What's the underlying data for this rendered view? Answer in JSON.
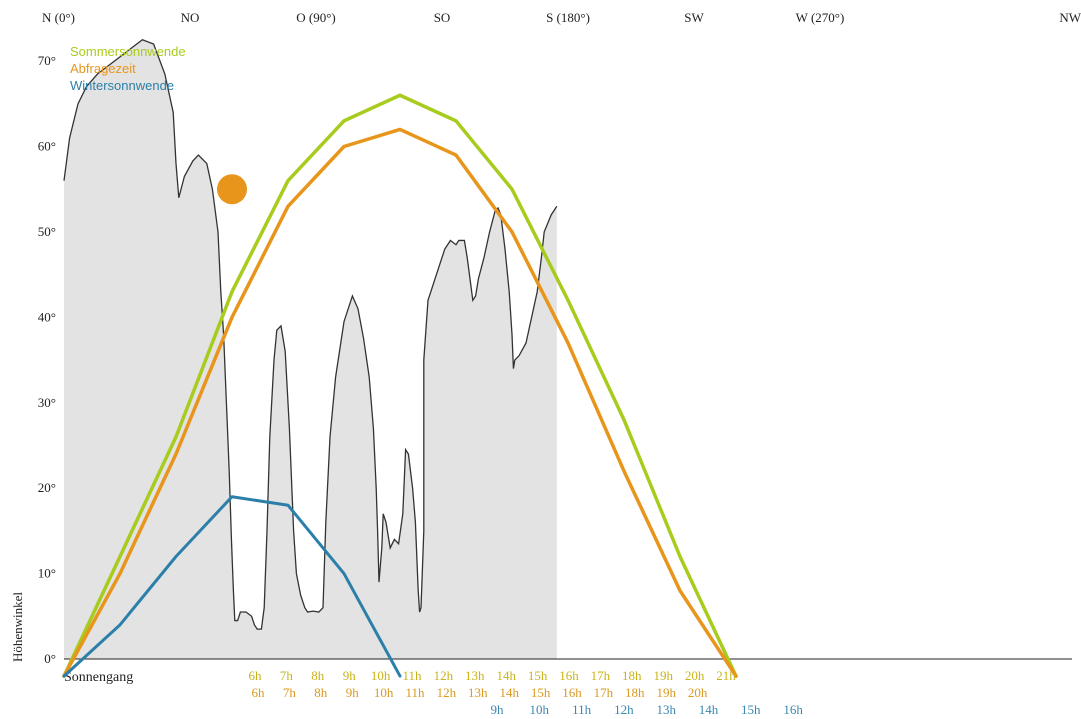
{
  "chart_data": {
    "type": "line",
    "ylabel": "Höhenwinkel",
    "xlabel": "Sonnengang",
    "xlim": [
      0,
      360
    ],
    "ylim": [
      0,
      72
    ],
    "direction_labels": [
      {
        "az": 0,
        "label": "N (0°)"
      },
      {
        "az": 45,
        "label": "NO"
      },
      {
        "az": 90,
        "label": "O (90°)"
      },
      {
        "az": 135,
        "label": "SO"
      },
      {
        "az": 180,
        "label": "S (180°)"
      },
      {
        "az": 225,
        "label": "SW"
      },
      {
        "az": 270,
        "label": "W (270°)"
      },
      {
        "az": 315,
        "label": "NW"
      }
    ],
    "y_ticks": [
      {
        "value": 0,
        "label": "0°"
      },
      {
        "value": 10,
        "label": "10°"
      },
      {
        "value": 20,
        "label": "20°"
      },
      {
        "value": 30,
        "label": "30°"
      },
      {
        "value": 40,
        "label": "40°"
      },
      {
        "value": 50,
        "label": "50°"
      },
      {
        "value": 60,
        "label": "60°"
      },
      {
        "value": 70,
        "label": "70°"
      }
    ],
    "legend": [
      {
        "label": "Sommersonnwende",
        "color": "#a8cc1e"
      },
      {
        "label": "Abfragezeit",
        "color": "#e8951c"
      },
      {
        "label": "Wintersonnwende",
        "color": "#2b7fa8"
      }
    ],
    "horizon": {
      "color": "#333333",
      "fill": "#e3e3e3",
      "points": [
        [
          0,
          56
        ],
        [
          2,
          61
        ],
        [
          5,
          65
        ],
        [
          8,
          67
        ],
        [
          12,
          68.5
        ],
        [
          18,
          70
        ],
        [
          24,
          71.5
        ],
        [
          28,
          72.5
        ],
        [
          32,
          72
        ],
        [
          36,
          68.5
        ],
        [
          39,
          64
        ],
        [
          40,
          58
        ],
        [
          41,
          54
        ],
        [
          43,
          56.5
        ],
        [
          46,
          58.3
        ],
        [
          48,
          59
        ],
        [
          51,
          58
        ],
        [
          53,
          55
        ],
        [
          55,
          50
        ],
        [
          56,
          43
        ],
        [
          57,
          38
        ],
        [
          58,
          30
        ],
        [
          59,
          22
        ],
        [
          59.8,
          14
        ],
        [
          60.5,
          8
        ],
        [
          61,
          4.5
        ],
        [
          62,
          4.5
        ],
        [
          63,
          5.5
        ],
        [
          65,
          5.5
        ],
        [
          67,
          5
        ],
        [
          68,
          4
        ],
        [
          69,
          3.5
        ],
        [
          70.5,
          3.5
        ],
        [
          71.5,
          6
        ],
        [
          72.5,
          15
        ],
        [
          73.5,
          26
        ],
        [
          75,
          35
        ],
        [
          76,
          38.5
        ],
        [
          77.5,
          39
        ],
        [
          79,
          36
        ],
        [
          80.5,
          27
        ],
        [
          82,
          15
        ],
        [
          83,
          10
        ],
        [
          84.5,
          7.5
        ],
        [
          86,
          6
        ],
        [
          87,
          5.5
        ],
        [
          89,
          5.6
        ],
        [
          91,
          5.5
        ],
        [
          92.5,
          6
        ],
        [
          93.5,
          16
        ],
        [
          95,
          26
        ],
        [
          97,
          33
        ],
        [
          100,
          39.5
        ],
        [
          103,
          42.5
        ],
        [
          105,
          41
        ],
        [
          107,
          37.5
        ],
        [
          109,
          33
        ],
        [
          110.5,
          27
        ],
        [
          111.5,
          20
        ],
        [
          112,
          15
        ],
        [
          112.5,
          9
        ],
        [
          113.5,
          13
        ],
        [
          114,
          17
        ],
        [
          115,
          16
        ],
        [
          116.5,
          13
        ],
        [
          118,
          14
        ],
        [
          119.5,
          13.5
        ],
        [
          121,
          17
        ],
        [
          122,
          24.5
        ],
        [
          123,
          24
        ],
        [
          124.5,
          20
        ],
        [
          125.5,
          16
        ],
        [
          126.5,
          8
        ],
        [
          127,
          5.5
        ],
        [
          127.5,
          6
        ],
        [
          128.5,
          15
        ],
        [
          128.5,
          35
        ],
        [
          130,
          42
        ],
        [
          132,
          44
        ],
        [
          134,
          46
        ],
        [
          136,
          48
        ],
        [
          138,
          49
        ],
        [
          140,
          48.5
        ],
        [
          141,
          49
        ],
        [
          143,
          49
        ],
        [
          144,
          47
        ],
        [
          145,
          44.5
        ],
        [
          146,
          42
        ],
        [
          147,
          42.5
        ],
        [
          148,
          44.5
        ],
        [
          150,
          47
        ],
        [
          152,
          50
        ],
        [
          154,
          52.5
        ],
        [
          155,
          52.8
        ],
        [
          156,
          52
        ],
        [
          157.5,
          48
        ],
        [
          159,
          43
        ],
        [
          160,
          38
        ],
        [
          160.5,
          34
        ],
        [
          161,
          35
        ],
        [
          162.5,
          35.5
        ],
        [
          165,
          37
        ],
        [
          167,
          40
        ],
        [
          169,
          43
        ],
        [
          170.5,
          47
        ],
        [
          171.5,
          50
        ],
        [
          174,
          52
        ],
        [
          176,
          53
        ]
      ]
    },
    "series": [
      {
        "name": "Sommersonnwende",
        "color": "#a8cc1e",
        "points": [
          [
            0,
            -2
          ],
          [
            20,
            12
          ],
          [
            40,
            26
          ],
          [
            60,
            43
          ],
          [
            80,
            56
          ],
          [
            100,
            63
          ],
          [
            120,
            66
          ],
          [
            140,
            63
          ],
          [
            160,
            55
          ],
          [
            180,
            42
          ],
          [
            200,
            28
          ],
          [
            220,
            12
          ],
          [
            240,
            -2
          ]
        ]
      },
      {
        "name": "Abfragezeit",
        "color": "#e8951c",
        "current_position": [
          60,
          55
        ],
        "points": [
          [
            0,
            -2
          ],
          [
            20,
            10
          ],
          [
            40,
            24
          ],
          [
            60,
            40
          ],
          [
            80,
            53
          ],
          [
            100,
            60
          ],
          [
            120,
            62
          ],
          [
            140,
            59
          ],
          [
            160,
            50
          ],
          [
            180,
            37
          ],
          [
            200,
            22
          ],
          [
            220,
            8
          ],
          [
            240,
            -2
          ]
        ]
      },
      {
        "name": "Wintersonnwende",
        "color": "#2b7fa8",
        "points": [
          [
            0,
            -2
          ],
          [
            20,
            4
          ],
          [
            40,
            12
          ],
          [
            60,
            19
          ],
          [
            80,
            18
          ],
          [
            100,
            10
          ],
          [
            120,
            -2
          ]
        ]
      }
    ],
    "hour_rows": [
      {
        "series": "Sommersonnwende",
        "color": "#c8b418",
        "labels": [
          "6h",
          "7h",
          "8h",
          "9h",
          "10h",
          "11h",
          "12h",
          "13h",
          "14h",
          "15h",
          "16h",
          "17h",
          "18h",
          "19h",
          "20h",
          "21h"
        ]
      },
      {
        "series": "Abfragezeit",
        "color": "#d99a1e",
        "labels": [
          "6h",
          "7h",
          "8h",
          "9h",
          "10h",
          "11h",
          "12h",
          "13h",
          "14h",
          "15h",
          "16h",
          "17h",
          "18h",
          "19h",
          "20h"
        ]
      },
      {
        "series": "Wintersonnwende",
        "color": "#3a88b0",
        "labels": [
          "9h",
          "10h",
          "11h",
          "12h",
          "13h",
          "14h",
          "15h",
          "16h"
        ]
      }
    ],
    "grid": false
  }
}
